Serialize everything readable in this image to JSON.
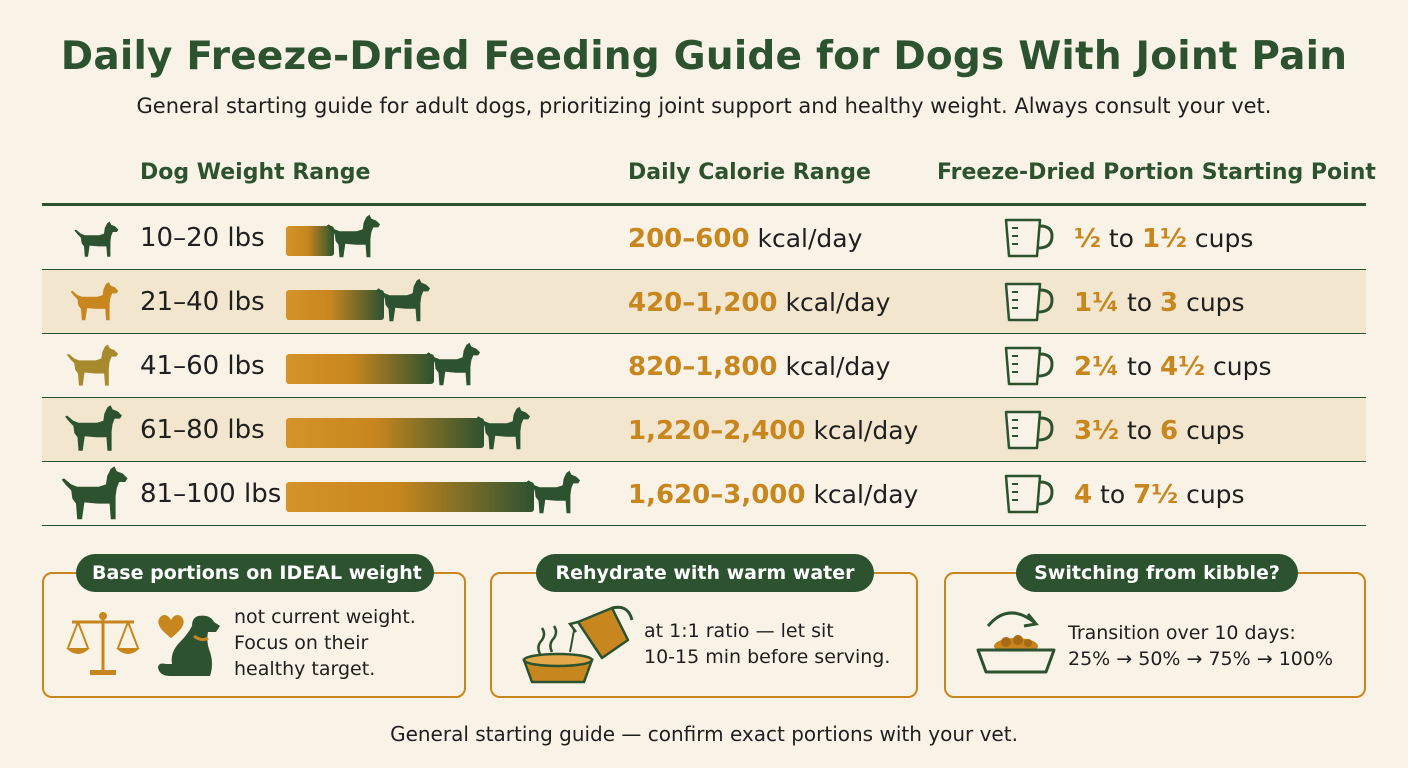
{
  "title": "Daily Freeze-Dried Feeding Guide for Dogs With Joint Pain",
  "subtitle": "General starting guide for adult dogs, prioritizing joint support and healthy weight. Always consult your vet.",
  "columns": {
    "weight": "Dog Weight Range",
    "calories": "Daily Calorie Range",
    "portion": "Freeze-Dried Portion Starting Point"
  },
  "rows": [
    {
      "weight": "10–20 lbs",
      "kcal": "200–600",
      "kcal_unit": "kcal/day",
      "p_low": "½",
      "p_to": "to",
      "p_high": "1½",
      "p_unit": "cups",
      "bar_level": 0.2,
      "dog_color": "#2d5230"
    },
    {
      "weight": "21–40 lbs",
      "kcal": "420–1,200",
      "kcal_unit": "kcal/day",
      "p_low": "1¼",
      "p_to": "to",
      "p_high": "3",
      "p_unit": "cups",
      "bar_level": 0.4,
      "dog_color": "#c8861e"
    },
    {
      "weight": "41–60 lbs",
      "kcal": "820–1,800",
      "kcal_unit": "kcal/day",
      "p_low": "2¼",
      "p_to": "to",
      "p_high": "4½",
      "p_unit": "cups",
      "bar_level": 0.6,
      "dog_color": "#a88a2e"
    },
    {
      "weight": "61–80 lbs",
      "kcal": "1,220–2,400",
      "kcal_unit": "kcal/day",
      "p_low": "3½",
      "p_to": "to",
      "p_high": "6",
      "p_unit": "cups",
      "bar_level": 0.8,
      "dog_color": "#2d5230"
    },
    {
      "weight": "81–100 lbs",
      "kcal": "1,620–3,000",
      "kcal_unit": "kcal/day",
      "p_low": "4",
      "p_to": "to",
      "p_high": "7½",
      "p_unit": "cups",
      "bar_level": 1.0,
      "dog_color": "#2d5230"
    }
  ],
  "tips": [
    {
      "label": "Base portions on IDEAL weight",
      "line1": "not current weight.",
      "line2": "Focus on their",
      "line3": "healthy target.",
      "icons": [
        "scale-icon",
        "heart-icon",
        "sitting-dog-icon"
      ]
    },
    {
      "label": "Rehydrate with warm water",
      "line1": "at 1:1 ratio — let sit",
      "line2": "10-15 min before serving.",
      "icons": [
        "water-pitcher-icon",
        "steaming-bowl-icon"
      ]
    },
    {
      "label": "Switching from kibble?",
      "line1": "Transition over 10 days:",
      "line2": "25% → 50% → 75% → 100%",
      "icons": [
        "circular-arrow-icon",
        "food-bowl-icon"
      ]
    }
  ],
  "footer": "General starting guide — confirm exact portions with your vet.",
  "colors": {
    "green": "#2d5230",
    "gold": "#c8861e",
    "bg": "#f8f3e6",
    "shade": "#f3e6cf"
  }
}
